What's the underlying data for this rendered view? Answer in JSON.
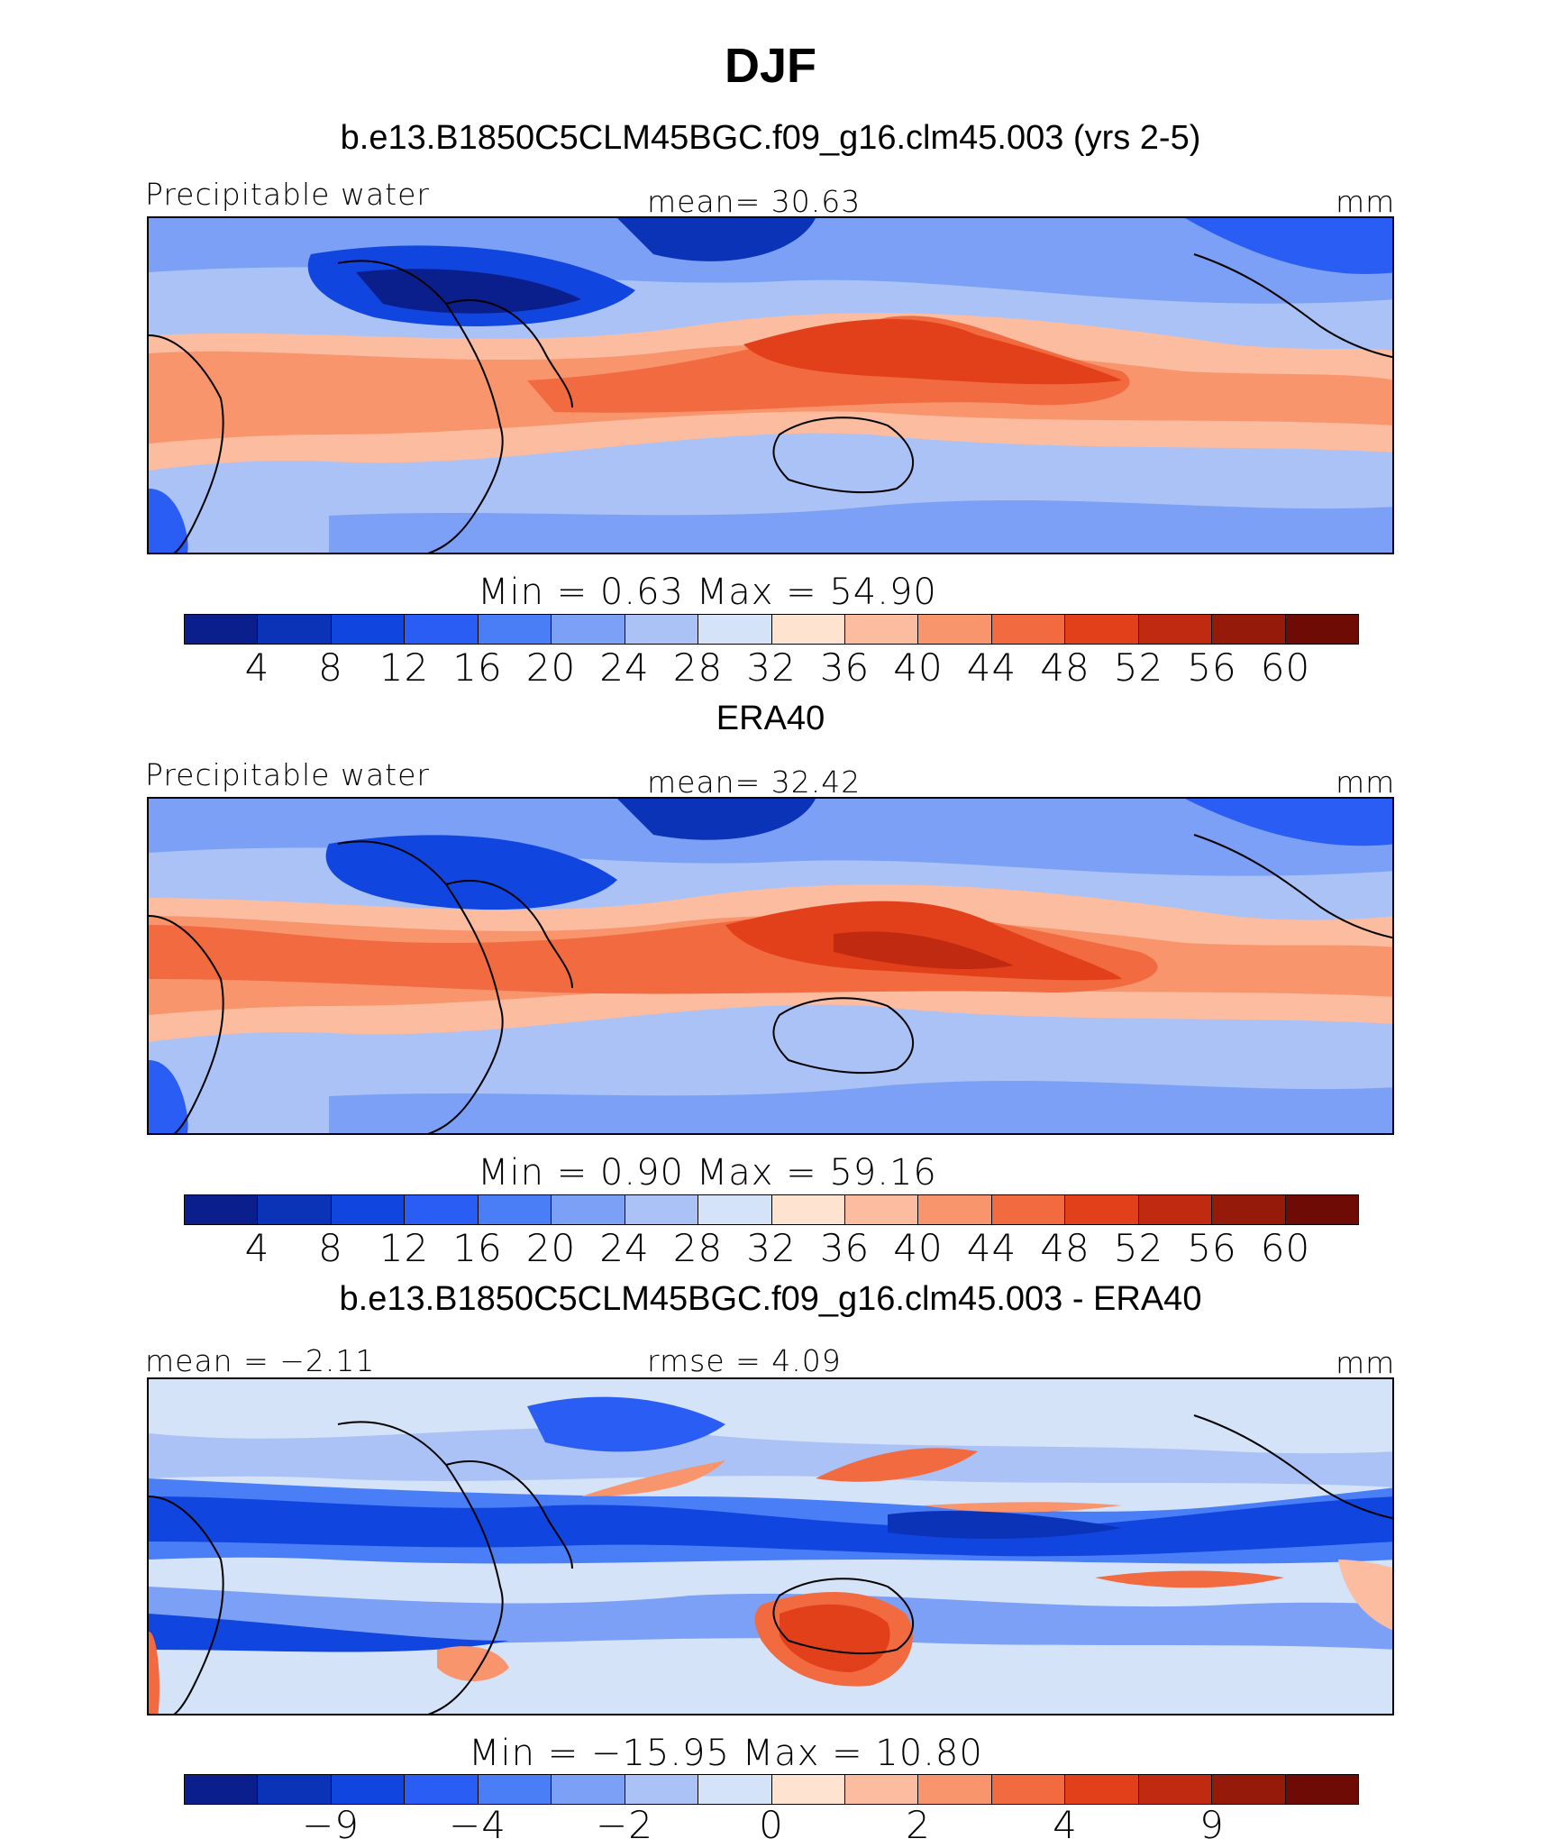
{
  "figure": {
    "season": "DJF",
    "palette_11": [
      "#0b1f8c",
      "#0a33b8",
      "#1145df",
      "#2a5df3",
      "#4a7ef7",
      "#7ba0f6",
      "#aac2f6",
      "#d4e3f8",
      "#fde3d0",
      "#fbbca0",
      "#f9956d",
      "#f26a40",
      "#e2401b",
      "#c02a10",
      "#951a0a",
      "#6e0b05"
    ]
  },
  "panels": [
    {
      "title": "b.e13.B1850C5CLM45BGC.f09_g16.clm45.003 (yrs 2-5)",
      "left_label": "Precipitable water",
      "center_label": "mean=   30.63",
      "right_label": "mm",
      "minmax": "Min  =     0.63  Max  =    54.90",
      "ticks": [
        "4",
        "8",
        "12",
        "16",
        "20",
        "24",
        "28",
        "32",
        "36",
        "40",
        "44",
        "48",
        "52",
        "56",
        "60"
      ]
    },
    {
      "title": "ERA40",
      "left_label": "Precipitable water",
      "center_label": "mean=   32.42",
      "right_label": "mm",
      "minmax": "Min  =     0.90  Max  =    59.16",
      "ticks": [
        "4",
        "8",
        "12",
        "16",
        "20",
        "24",
        "28",
        "32",
        "36",
        "40",
        "44",
        "48",
        "52",
        "56",
        "60"
      ]
    },
    {
      "title": "b.e13.B1850C5CLM45BGC.f09_g16.clm45.003 - ERA40",
      "left_label": "mean  =   −2.11",
      "center_label": "rmse  =     4.09",
      "right_label": "mm",
      "minmax": "Min  =  −15.95  Max  =    10.80",
      "ticks": [
        "−9",
        "−4",
        "−2",
        "0",
        "2",
        "4",
        "9"
      ]
    }
  ],
  "chart_data": [
    {
      "type": "heatmap",
      "title": "b.e13.B1850C5CLM45BGC.f09_g16.clm45.003 (yrs 2-5)",
      "variable": "Precipitable water",
      "units": "mm",
      "mean": 30.63,
      "min": 0.63,
      "max": 54.9,
      "contour_levels": [
        4,
        8,
        12,
        16,
        20,
        24,
        28,
        32,
        36,
        40,
        44,
        48,
        52,
        56,
        60
      ],
      "colors": [
        "#0b1f8c",
        "#0a33b8",
        "#1145df",
        "#2a5df3",
        "#4a7ef7",
        "#7ba0f6",
        "#aac2f6",
        "#d4e3f8",
        "#fde3d0",
        "#fbbca0",
        "#f9956d",
        "#f26a40",
        "#e2401b",
        "#c02a10",
        "#951a0a",
        "#6e0b05"
      ]
    },
    {
      "type": "heatmap",
      "title": "ERA40",
      "variable": "Precipitable water",
      "units": "mm",
      "mean": 32.42,
      "min": 0.9,
      "max": 59.16,
      "contour_levels": [
        4,
        8,
        12,
        16,
        20,
        24,
        28,
        32,
        36,
        40,
        44,
        48,
        52,
        56,
        60
      ],
      "colors": [
        "#0b1f8c",
        "#0a33b8",
        "#1145df",
        "#2a5df3",
        "#4a7ef7",
        "#7ba0f6",
        "#aac2f6",
        "#d4e3f8",
        "#fde3d0",
        "#fbbca0",
        "#f9956d",
        "#f26a40",
        "#e2401b",
        "#c02a10",
        "#951a0a",
        "#6e0b05"
      ]
    },
    {
      "type": "heatmap",
      "title": "b.e13.B1850C5CLM45BGC.f09_g16.clm45.003 - ERA40",
      "units": "mm",
      "mean": -2.11,
      "rmse": 4.09,
      "min": -15.95,
      "max": 10.8,
      "contour_levels": [
        -9,
        -4,
        -2,
        0,
        2,
        4,
        9
      ],
      "colors": [
        "#0b1f8c",
        "#1145df",
        "#4a7ef7",
        "#aac2f6",
        "#d4e3f8",
        "#fde3d0",
        "#fbbca0",
        "#f26a40",
        "#c02a10",
        "#6e0b05"
      ]
    }
  ]
}
